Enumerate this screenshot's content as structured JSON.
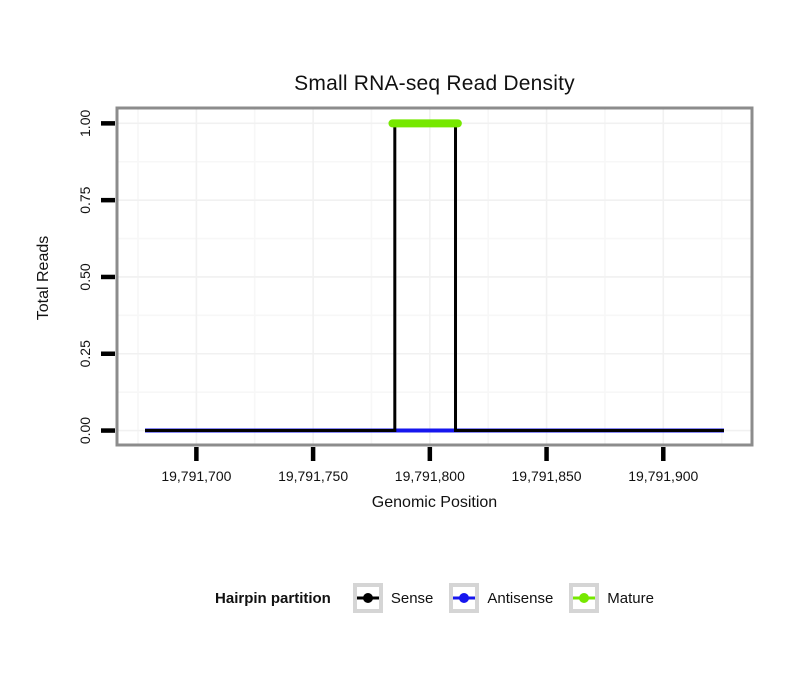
{
  "chart_data": {
    "type": "line",
    "title": "Small RNA-seq Read Density",
    "xlabel": "Genomic Position",
    "ylabel": "Total Reads",
    "legend_title": "Hairpin partition",
    "legend_position": "bottom",
    "grid": "major and minor gridlines, very light gray on white panel",
    "panel_border_color": "#8c8c8c",
    "tick_color": "#000000",
    "xlim": [
      19791666,
      19791938
    ],
    "ylim": [
      -0.047,
      1.05
    ],
    "x_ticks": {
      "values": [
        19791700,
        19791750,
        19791800,
        19791850,
        19791900
      ],
      "labels": [
        "19,791,700",
        "19,791,750",
        "19,791,800",
        "19,791,850",
        "19,791,900"
      ]
    },
    "y_ticks": {
      "values": [
        0,
        0.25,
        0.5,
        0.75,
        1.0
      ],
      "labels": [
        "0.00",
        "0.25",
        "0.50",
        "0.75",
        "1.00"
      ]
    },
    "x_minor": [
      19791675,
      19791725,
      19791775,
      19791825,
      19791875,
      19791925
    ],
    "y_minor": [
      0.125,
      0.375,
      0.625,
      0.875
    ],
    "series": [
      {
        "name": "Antisense",
        "color": "#1616ee",
        "linewidth": 4,
        "linecap": "butt",
        "z": 1,
        "points": [
          [
            19791678,
            0
          ],
          [
            19791926,
            0
          ]
        ]
      },
      {
        "name": "Sense",
        "color": "#000000",
        "linewidth": 3,
        "linecap": "butt",
        "z": 2,
        "points": [
          [
            19791678,
            0
          ],
          [
            19791785,
            0
          ],
          [
            19791785,
            1
          ],
          [
            19791811,
            1
          ],
          [
            19791811,
            0
          ],
          [
            19791926,
            0
          ]
        ]
      },
      {
        "name": "Mature",
        "color": "#76e800",
        "linewidth": 8,
        "linecap": "round",
        "z": 3,
        "points": [
          [
            19791784,
            1
          ],
          [
            19791812,
            1
          ]
        ]
      }
    ]
  },
  "legend": {
    "title": "Hairpin partition",
    "items": [
      {
        "label": "Sense",
        "color": "#000000"
      },
      {
        "label": "Antisense",
        "color": "#1616ee"
      },
      {
        "label": "Mature",
        "color": "#76e800"
      }
    ]
  }
}
